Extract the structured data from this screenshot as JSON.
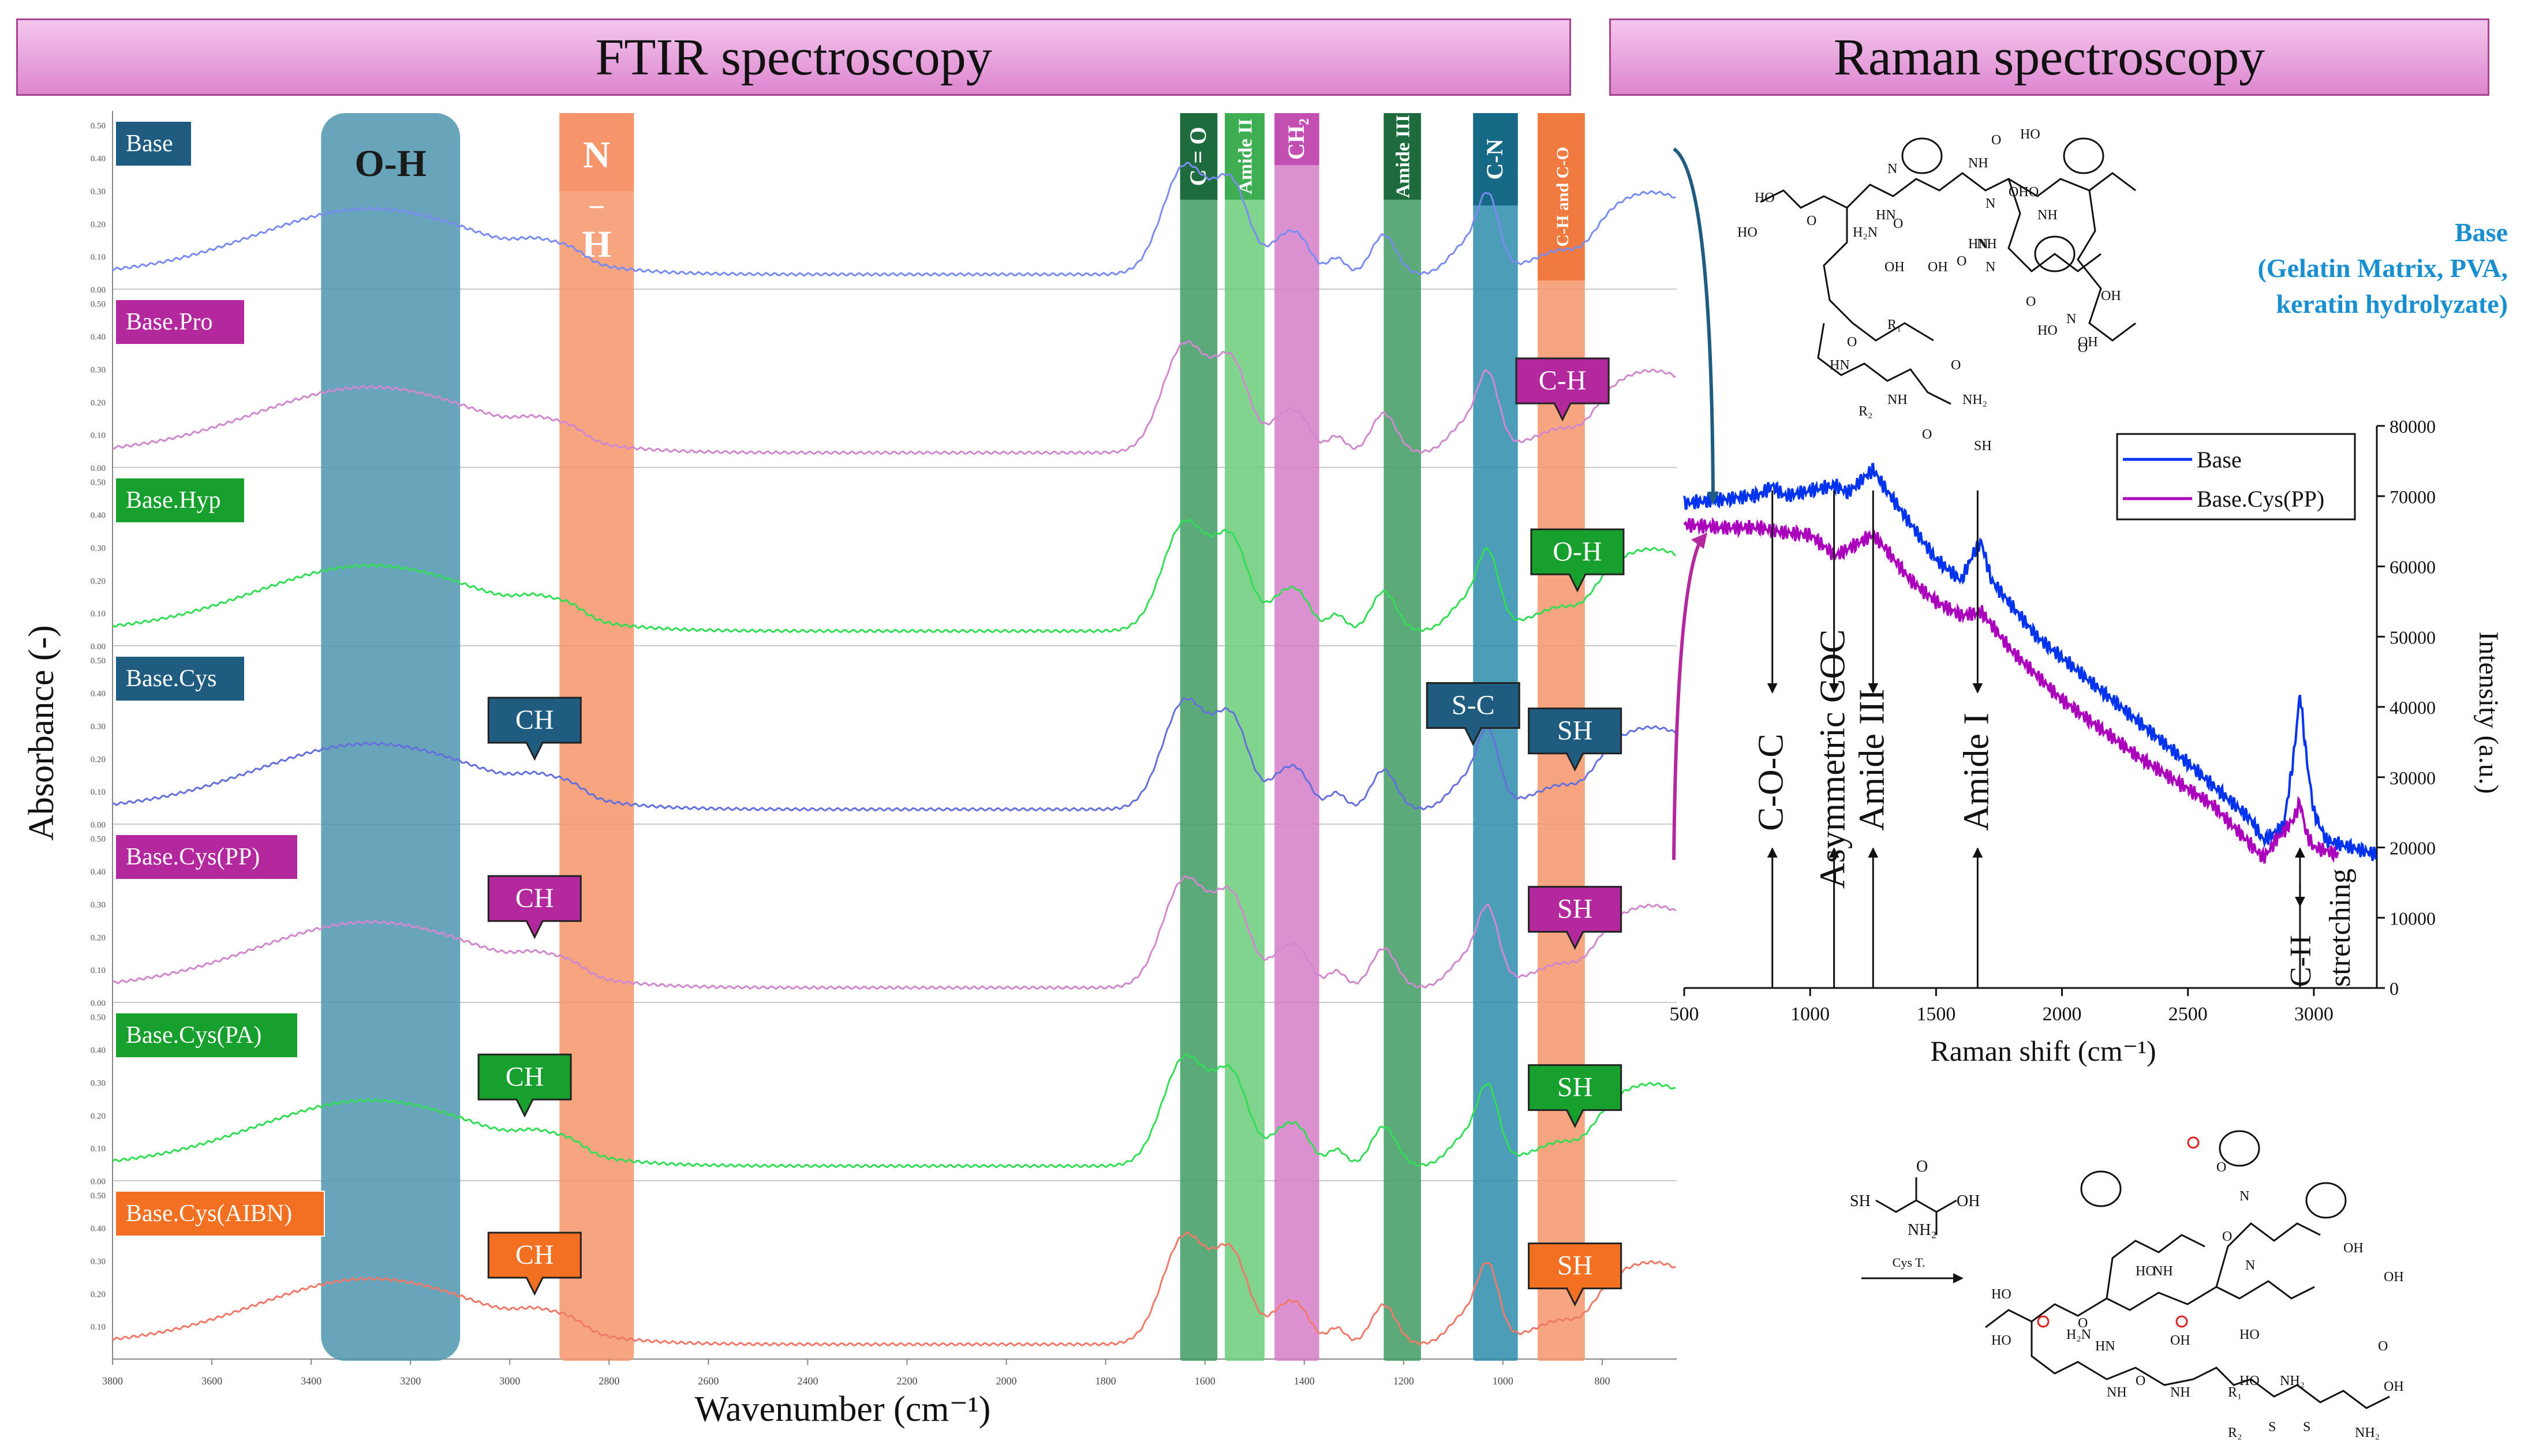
{
  "banners": {
    "ftir": "FTIR spectroscopy",
    "raman": "Raman spectroscopy"
  },
  "colors": {
    "blue_sample": "#1f5c7f",
    "magenta_sample": "#b3289d",
    "green_sample": "#17a02e",
    "orange_sample": "#f36f21",
    "oh_band": "#4d95ae",
    "orange_band": "#f6956b",
    "dark_green_band": "#3f9a63",
    "light_green_band": "#6acd7a",
    "pink_band": "#d57cc8",
    "teal_band": "#2c8cab",
    "base_line": "#7a8cf0",
    "pro_line": "#d088cf",
    "hyp_line": "#33dd55",
    "cys_line": "#6670dd",
    "raman_base": "#0033ee",
    "raman_cys": "#aa00bb"
  },
  "chart_data": [
    {
      "type": "line",
      "title": "FTIR spectroscopy",
      "xlabel": "Wavenumber (cm⁻¹)",
      "ylabel": "Absorbance (-)",
      "xlim": [
        3800,
        650
      ],
      "x_ticks": [
        "3800",
        "3600",
        "3400",
        "3200",
        "3000",
        "2800",
        "2600",
        "2400",
        "2200",
        "2000",
        "1800",
        "1600",
        "1400",
        "1200",
        "1000",
        "800"
      ],
      "panel_ylim": [
        0,
        0.5
      ],
      "panel_y_ticks": [
        "0.50",
        "0.40",
        "0.30",
        "0.20",
        "0.10",
        "0.00"
      ],
      "panel_y_ticks_last": [
        "0.50",
        "0.40",
        "0.30",
        "0.20",
        "0.10"
      ],
      "bands": [
        {
          "name": "O-H",
          "label": "O-H",
          "from": 3380,
          "to": 3100,
          "color": "#4d95ae"
        },
        {
          "name": "N-H",
          "label": "N – H",
          "label_top": "N",
          "label_mid": "–",
          "label_bot": "H",
          "from": 2900,
          "to": 2750,
          "color": "#f6956b"
        },
        {
          "name": "C=O",
          "label": "C = O",
          "from": 1650,
          "to": 1575,
          "color": "#3f9a63"
        },
        {
          "name": "Amide II",
          "label": "Amide II",
          "from": 1560,
          "to": 1480,
          "color": "#6acd7a"
        },
        {
          "name": "CH2",
          "label": "CH₂",
          "from": 1460,
          "to": 1370,
          "color": "#d57cc8"
        },
        {
          "name": "Amide III",
          "label": "Amide III",
          "from": 1240,
          "to": 1165,
          "color": "#3f9a63"
        },
        {
          "name": "C-N",
          "label": "C-N",
          "from": 1060,
          "to": 970,
          "color": "#2c8cab"
        },
        {
          "name": "C-H and C-O",
          "label": "C-H and C-O",
          "from": 930,
          "to": 835,
          "color": "#f6956b"
        }
      ],
      "series": [
        {
          "name": "Base",
          "color": "#7a8cf0",
          "tag_color": "#1f5c7f",
          "callouts": []
        },
        {
          "name": "Base.Pro",
          "color": "#d088cf",
          "tag_color": "#b3289d",
          "callouts": [
            {
              "text": "C-H",
              "x": 880,
              "color": "#b3289d"
            }
          ]
        },
        {
          "name": "Base.Hyp",
          "color": "#33dd55",
          "tag_color": "#17a02e",
          "callouts": [
            {
              "text": "O-H",
              "x": 850,
              "color": "#17a02e"
            }
          ]
        },
        {
          "name": "Base.Cys",
          "color": "#6670dd",
          "tag_color": "#1f5c7f",
          "callouts": [
            {
              "text": "CH",
              "x": 2950,
              "color": "#1f5c7f"
            },
            {
              "text": "S-C",
              "x": 1060,
              "color": "#1f5c7f"
            },
            {
              "text": "SH",
              "x": 855,
              "color": "#1f5c7f"
            }
          ]
        },
        {
          "name": "Base.Cys(PP)",
          "color": "#d088cf",
          "tag_color": "#b3289d",
          "callouts": [
            {
              "text": "CH",
              "x": 2950,
              "color": "#b3289d"
            },
            {
              "text": "SH",
              "x": 855,
              "color": "#b3289d"
            }
          ]
        },
        {
          "name": "Base.Cys(PA)",
          "color": "#33dd55",
          "tag_color": "#17a02e",
          "callouts": [
            {
              "text": "CH",
              "x": 2970,
              "color": "#17a02e"
            },
            {
              "text": "SH",
              "x": 855,
              "color": "#17a02e"
            }
          ]
        },
        {
          "name": "Base.Cys(AIBN)",
          "color": "#f07a6a",
          "tag_color": "#f36f21",
          "callouts": [
            {
              "text": "CH",
              "x": 2950,
              "color": "#f36f21"
            },
            {
              "text": "SH",
              "x": 855,
              "color": "#f36f21"
            }
          ]
        }
      ]
    },
    {
      "type": "line",
      "title": "Raman spectroscopy",
      "xlabel": "Raman shift (cm⁻¹)",
      "ylabel": "Intensity (a.u.)",
      "xlim": [
        500,
        3250
      ],
      "ylim": [
        0,
        80000
      ],
      "x_ticks": [
        500,
        1000,
        1500,
        2000,
        2500,
        3000
      ],
      "y_ticks": [
        0,
        10000,
        20000,
        30000,
        40000,
        50000,
        60000,
        70000,
        80000
      ],
      "series": [
        {
          "name": "Base",
          "color": "#0033ee",
          "points": [
            [
              500,
              69000
            ],
            [
              650,
              69500
            ],
            [
              800,
              70200
            ],
            [
              850,
              71500
            ],
            [
              900,
              70000
            ],
            [
              1000,
              70800
            ],
            [
              1100,
              71500
            ],
            [
              1150,
              70500
            ],
            [
              1250,
              73800
            ],
            [
              1300,
              71000
            ],
            [
              1400,
              66000
            ],
            [
              1500,
              61000
            ],
            [
              1600,
              58000
            ],
            [
              1650,
              62000
            ],
            [
              1680,
              63500
            ],
            [
              1720,
              58000
            ],
            [
              1900,
              50000
            ],
            [
              2200,
              41000
            ],
            [
              2500,
              32000
            ],
            [
              2750,
              24000
            ],
            [
              2800,
              21000
            ],
            [
              2880,
              23000
            ],
            [
              2920,
              33000
            ],
            [
              2945,
              42000
            ],
            [
              2970,
              33000
            ],
            [
              3000,
              25000
            ],
            [
              3050,
              21000
            ],
            [
              3150,
              20000
            ],
            [
              3250,
              19000
            ]
          ]
        },
        {
          "name": "Base.Cys(PP)",
          "color": "#aa00bb",
          "points": [
            [
              500,
              66000
            ],
            [
              650,
              65500
            ],
            [
              800,
              65500
            ],
            [
              900,
              64800
            ],
            [
              1000,
              64500
            ],
            [
              1100,
              61500
            ],
            [
              1150,
              62500
            ],
            [
              1250,
              64500
            ],
            [
              1300,
              62500
            ],
            [
              1400,
              58000
            ],
            [
              1500,
              55000
            ],
            [
              1600,
              53000
            ],
            [
              1680,
              53500
            ],
            [
              1800,
              48000
            ],
            [
              2000,
              41000
            ],
            [
              2300,
              33000
            ],
            [
              2600,
              26000
            ],
            [
              2800,
              18500
            ],
            [
              2850,
              21000
            ],
            [
              2920,
              24000
            ],
            [
              2945,
              26500
            ],
            [
              2970,
              22000
            ],
            [
              3000,
              20000
            ],
            [
              3100,
              19000
            ]
          ]
        }
      ],
      "legend": [
        "Base",
        "Base.Cys(PP)"
      ],
      "annotations": [
        {
          "text": "C-O-C",
          "x": 850
        },
        {
          "text": "Asymmetric COC",
          "x": 1095
        },
        {
          "text": "Amide III",
          "x": 1250
        },
        {
          "text": "Amide I",
          "x": 1665
        },
        {
          "text": "C-H stretching",
          "x": 2945
        }
      ]
    }
  ],
  "chem": {
    "base_title": "Base",
    "base_desc_1": "(Gelatin Matrix, PVA,",
    "base_desc_2": "keratin hydrolyzate)",
    "cys_label": "Cys T.",
    "atom_labels_top": [
      "HO",
      "HO",
      "O",
      "N",
      "O",
      "NH",
      "O",
      "HO",
      "N",
      "O",
      "HN",
      "NH",
      "H₂N",
      "HN",
      "OH",
      "OH",
      "NH",
      "O",
      "N",
      "O",
      "OH",
      "O",
      "R₁",
      "HN",
      "NH",
      "NH₂",
      "R₂",
      "O",
      "SH",
      "OH",
      "O",
      "HO",
      "OH",
      "N",
      "O"
    ],
    "atom_labels_bottom": [
      "HO",
      "HO",
      "O",
      "H₂N",
      "HN",
      "NH",
      "N",
      "O",
      "OH",
      "HO",
      "OH",
      "HO",
      "NH",
      "NH",
      "O",
      "R₁",
      "R₂",
      "NH₂",
      "S",
      "S",
      "OH",
      "NH₂",
      "O",
      "N",
      "O",
      "OH",
      "HO"
    ],
    "cys_atoms": [
      "SH",
      "NH₂",
      "OH",
      "O"
    ]
  }
}
